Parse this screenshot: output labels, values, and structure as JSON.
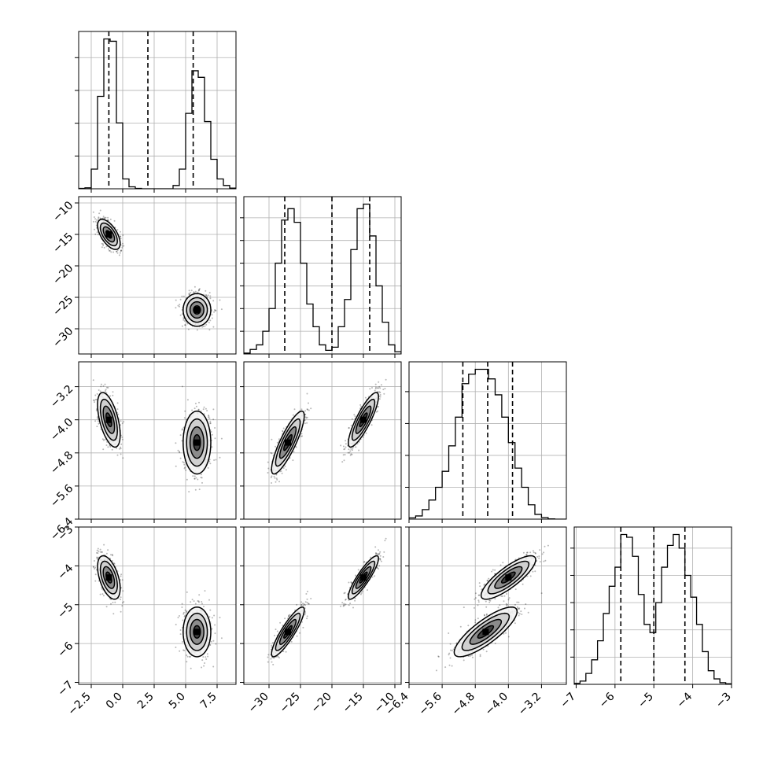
{
  "chart_data": {
    "type": "corner",
    "parameters": [
      {
        "range": [
          -3.5,
          9
        ],
        "ticks": [
          -2.5,
          0.0,
          2.5,
          5.0,
          7.5
        ],
        "tick_labels": [
          "−2.5",
          "0.0",
          "2.5",
          "5.0",
          "7.5"
        ],
        "quantiles": [
          -1.1,
          2.0,
          5.6
        ]
      },
      {
        "range": [
          -34,
          -9
        ],
        "ticks": [
          -30,
          -25,
          -20,
          -15,
          -10
        ],
        "tick_labels": [
          "−30",
          "−25",
          "−20",
          "−15",
          "−10"
        ],
        "quantiles": [
          -27.5,
          -20.0,
          -14.0
        ]
      },
      {
        "range": [
          -6.4,
          -2.6
        ],
        "ticks": [
          -6.4,
          -5.6,
          -4.8,
          -4.0,
          -3.2
        ],
        "tick_labels": [
          "−6.4",
          "−5.6",
          "−4.8",
          "−4.0",
          "−3.2"
        ],
        "quantiles": [
          -5.1,
          -4.5,
          -3.9
        ]
      },
      {
        "range": [
          -7.05,
          -3.0
        ],
        "ticks": [
          -7,
          -6,
          -5,
          -4,
          -3
        ],
        "tick_labels": [
          "−7",
          "−6",
          "−5",
          "−4",
          "−3"
        ],
        "quantiles": [
          -5.85,
          -5.0,
          -4.2
        ]
      }
    ],
    "histograms": [
      {
        "param": 0,
        "bin_edges": [
          -3.5,
          -3.0,
          -2.5,
          -2.0,
          -1.5,
          -1.0,
          -0.5,
          0.0,
          0.5,
          1.0,
          1.5,
          2.0,
          2.5,
          3.0,
          3.5,
          4.0,
          4.5,
          5.0,
          5.5,
          6.0,
          6.5,
          7.0,
          7.5,
          8.0,
          8.5,
          9.0
        ],
        "counts": [
          1,
          3,
          60,
          282,
          457,
          450,
          201,
          30,
          6,
          1,
          0,
          0,
          0,
          0,
          0,
          10,
          60,
          230,
          360,
          340,
          205,
          90,
          30,
          10,
          2
        ]
      },
      {
        "param": 1,
        "bin_edges": [
          -34,
          -33,
          -32,
          -31,
          -30,
          -29,
          -28,
          -27,
          -26,
          -25,
          -24,
          -23,
          -22,
          -21,
          -20,
          -19,
          -18,
          -17,
          -16,
          -15,
          -14,
          -13,
          -12,
          -11,
          -10,
          -9
        ],
        "counts": [
          2,
          10,
          20,
          50,
          100,
          200,
          295,
          320,
          290,
          200,
          110,
          60,
          20,
          8,
          15,
          60,
          120,
          230,
          320,
          330,
          260,
          150,
          70,
          20,
          5
        ]
      },
      {
        "param": 2,
        "bin_edges": [
          -6.4,
          -6.24,
          -6.08,
          -5.92,
          -5.76,
          -5.6,
          -5.44,
          -5.28,
          -5.12,
          -4.96,
          -4.8,
          -4.64,
          -4.48,
          -4.32,
          -4.16,
          -4.0,
          -3.84,
          -3.68,
          -3.52,
          -3.36,
          -3.2,
          -3.04,
          -2.88,
          -2.72,
          -2.56
        ],
        "counts": [
          4,
          10,
          30,
          60,
          100,
          150,
          230,
          320,
          425,
          455,
          470,
          470,
          440,
          390,
          320,
          240,
          160,
          100,
          45,
          15,
          5,
          1,
          0,
          0
        ]
      },
      {
        "param": 3,
        "bin_edges": [
          -7.05,
          -6.9,
          -6.75,
          -6.6,
          -6.45,
          -6.3,
          -6.15,
          -6.0,
          -5.85,
          -5.7,
          -5.55,
          -5.4,
          -5.25,
          -5.1,
          -4.95,
          -4.8,
          -4.65,
          -4.5,
          -4.35,
          -4.2,
          -4.05,
          -3.9,
          -3.75,
          -3.6,
          -3.45,
          -3.3,
          -3.15,
          -3.0
        ],
        "counts": [
          2,
          6,
          20,
          45,
          80,
          130,
          180,
          215,
          275,
          270,
          235,
          165,
          110,
          95,
          150,
          215,
          255,
          275,
          250,
          200,
          160,
          110,
          60,
          25,
          10,
          3,
          1
        ]
      }
    ],
    "clusters": [
      {
        "mean": [
          -1.1,
          -15.0,
          -4.0,
          -4.3
        ],
        "sd": [
          0.45,
          1.2,
          0.33,
          0.28
        ],
        "corr": [
          [
            1,
            -0.6,
            -0.55,
            -0.5
          ],
          [
            -0.6,
            1,
            0.85,
            0.88
          ],
          [
            -0.55,
            0.85,
            1,
            0.82
          ],
          [
            -0.5,
            0.88,
            0.82,
            1
          ]
        ]
      },
      {
        "mean": [
          5.9,
          -27.0,
          -4.55,
          -5.7
        ],
        "sd": [
          0.55,
          1.3,
          0.38,
          0.32
        ],
        "corr": [
          [
            1,
            0.0,
            0.0,
            0.0
          ],
          [
            0.0,
            1,
            0.85,
            0.88
          ],
          [
            0.0,
            0.85,
            1,
            0.82
          ],
          [
            0.0,
            0.88,
            0.82,
            1
          ]
        ]
      }
    ],
    "contour_levels_sigma": [
      0.5,
      1.0,
      1.5,
      2.0
    ],
    "scatter_points_per_cluster": 550,
    "grid": true,
    "title": "",
    "axis_labels": [],
    "colors": {
      "line": "#000000",
      "grid": "#b0b0b0",
      "scatter": "#000000",
      "fill_dark": "#404040",
      "fill_mid": "#8c8c8c",
      "fill_light": "#d0d0d0",
      "fill_outer": "#f2f2f2"
    }
  }
}
